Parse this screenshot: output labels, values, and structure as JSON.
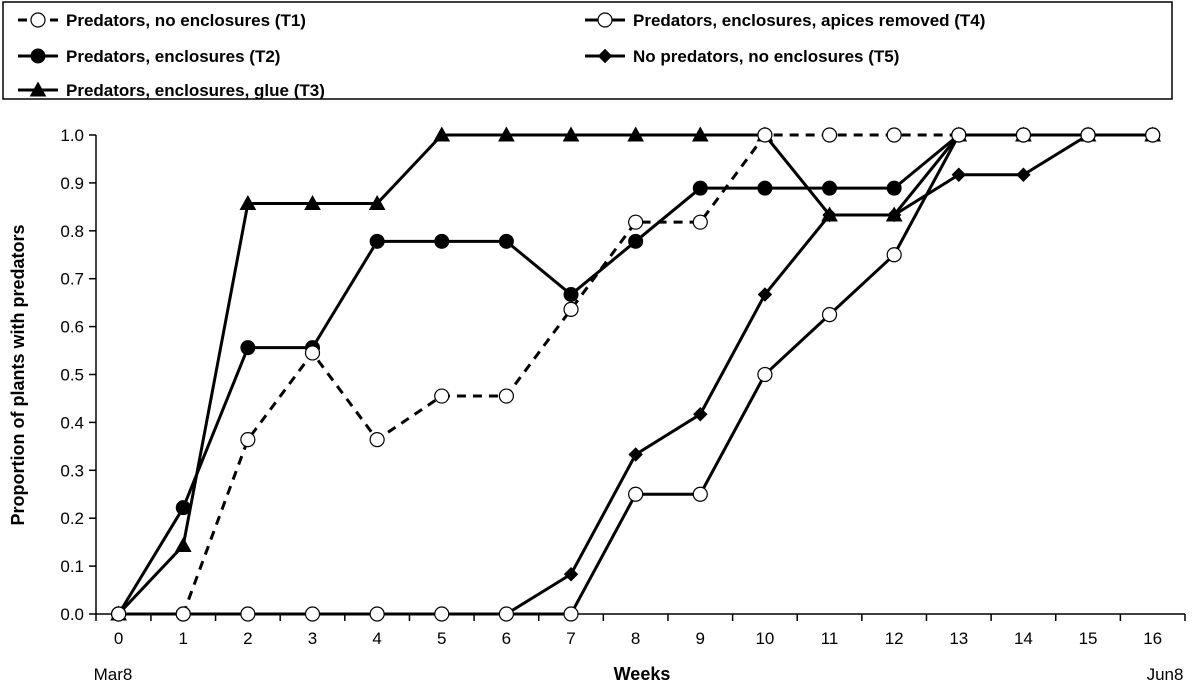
{
  "chart_data": {
    "type": "line",
    "title": "",
    "xlabel": "Weeks",
    "ylabel": "Proportion of plants with predators",
    "x": [
      0,
      1,
      2,
      3,
      4,
      5,
      6,
      7,
      8,
      9,
      10,
      11,
      12,
      13,
      14,
      15,
      16
    ],
    "x_tick_labels": [
      "0",
      "1",
      "2",
      "3",
      "4",
      "5",
      "6",
      "7",
      "8",
      "9",
      "10",
      "11",
      "12",
      "13",
      "14",
      "15",
      "16"
    ],
    "x_date_labels": {
      "start": "Mar8",
      "end": "Jun8"
    },
    "xlim": [
      -0.35,
      16.5
    ],
    "ylim": [
      0,
      1.0
    ],
    "y_ticks": [
      "0.0",
      "0.1",
      "0.2",
      "0.3",
      "0.4",
      "0.5",
      "0.6",
      "0.7",
      "0.8",
      "0.9",
      "1.0"
    ],
    "grid": false,
    "legend_position": "top",
    "series": [
      {
        "name": "Predators, no enclosures (T1)",
        "marker": "circle-open",
        "line": "dashed",
        "color": "#000000",
        "values": [
          0,
          0,
          0.364,
          0.545,
          0.364,
          0.455,
          0.455,
          0.636,
          0.818,
          0.818,
          1.0,
          1.0,
          1.0,
          1.0,
          1.0,
          1.0,
          1.0
        ]
      },
      {
        "name": "Predators, enclosures (T2)",
        "marker": "circle-filled",
        "line": "solid",
        "color": "#000000",
        "values": [
          0,
          0.222,
          0.556,
          0.556,
          0.778,
          0.778,
          0.778,
          0.667,
          0.778,
          0.889,
          0.889,
          0.889,
          0.889,
          1.0,
          1.0,
          1.0,
          1.0
        ]
      },
      {
        "name": "Predators, enclosures, glue (T3)",
        "marker": "triangle-filled",
        "line": "solid",
        "color": "#000000",
        "values": [
          0,
          0.143,
          0.857,
          0.857,
          0.857,
          1.0,
          1.0,
          1.0,
          1.0,
          1.0,
          1.0,
          0.833,
          0.833,
          1.0,
          1.0,
          1.0,
          1.0
        ]
      },
      {
        "name": "Predators, enclosures, apices removed (T4)",
        "marker": "circle-open",
        "line": "solid",
        "color": "#000000",
        "values": [
          0,
          0,
          0,
          0,
          0,
          0,
          0,
          0,
          0.25,
          0.25,
          0.5,
          0.625,
          0.75,
          1.0,
          1.0,
          1.0,
          1.0
        ]
      },
      {
        "name": "No predators, no enclosures (T5)",
        "marker": "diamond-filled",
        "line": "solid",
        "color": "#000000",
        "values": [
          0,
          0,
          0,
          0,
          0,
          0,
          0,
          0.083,
          0.333,
          0.417,
          0.667,
          0.833,
          0.833,
          0.917,
          0.917,
          1.0,
          1.0
        ]
      }
    ]
  },
  "legend": {
    "items": [
      {
        "label": "Predators, no enclosures (T1)",
        "series": 0
      },
      {
        "label": "Predators, enclosures, apices removed (T4)",
        "series": 3
      },
      {
        "label": "Predators, enclosures (T2)",
        "series": 1
      },
      {
        "label": "No predators, no enclosures (T5)",
        "series": 4
      },
      {
        "label": "Predators, enclosures, glue (T3)",
        "series": 2
      }
    ]
  }
}
